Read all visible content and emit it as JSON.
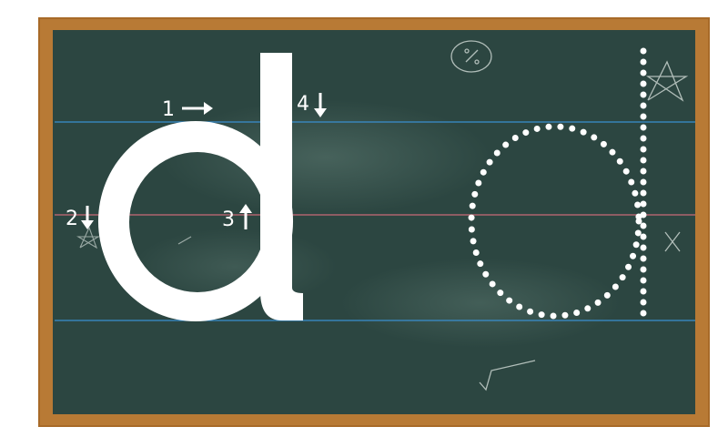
{
  "lesson": {
    "letter": "d",
    "stroke_steps": [
      {
        "number": "1",
        "direction": "right"
      },
      {
        "number": "2",
        "direction": "down"
      },
      {
        "number": "3",
        "direction": "up"
      },
      {
        "number": "4",
        "direction": "down"
      }
    ]
  },
  "colors": {
    "frame": "#b87a35",
    "board": "#2c4641",
    "guide_line": "#3a8fd0",
    "mid_line": "#c86a78",
    "letter": "#ffffff"
  },
  "icons": [
    "percent-doodle-icon",
    "star-doodle-icon",
    "x-doodle-icon",
    "square-root-doodle-icon"
  ]
}
